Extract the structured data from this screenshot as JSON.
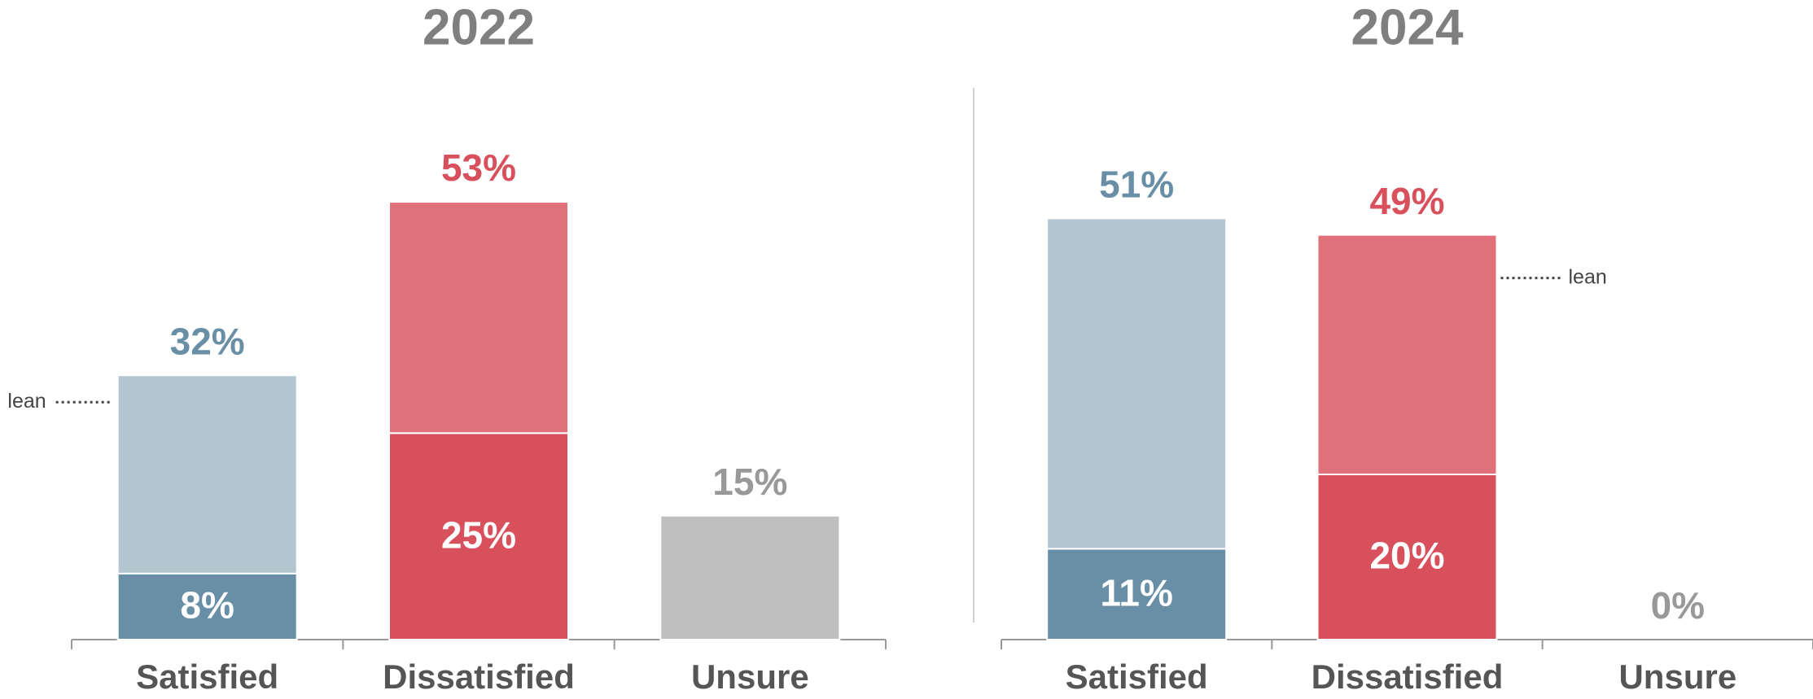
{
  "chart_data": [
    {
      "type": "bar",
      "title": "2022",
      "categories": [
        "Satisfied",
        "Dissatisfied",
        "Unsure"
      ],
      "series": [
        {
          "colors": [
            "#688fa5",
            "#d8505c",
            "#bfbfbf"
          ],
          "values": [
            8,
            25,
            15
          ],
          "value_labels": [
            "8%",
            "25%",
            "15%"
          ]
        },
        {
          "name": "lean",
          "colors": [
            "#b3c6cf",
            "#e0717a",
            null
          ],
          "values": [
            24,
            28,
            null
          ]
        }
      ],
      "totals": [
        32,
        53,
        null
      ],
      "total_labels": [
        "32%",
        "53%",
        null
      ],
      "label_colors": [
        "#688fa5",
        "#d8505c",
        "#999999"
      ]
    },
    {
      "type": "bar",
      "title": "2024",
      "categories": [
        "Satisfied",
        "Dissatisfied",
        "Unsure"
      ],
      "series": [
        {
          "colors": [
            "#688fa5",
            "#d8505c",
            "#bfbfbf"
          ],
          "values": [
            11,
            20,
            0
          ],
          "value_labels": [
            "11%",
            "20%",
            "0%"
          ]
        },
        {
          "name": "lean",
          "colors": [
            "#b3c6cf",
            "#e0717a",
            null
          ],
          "values": [
            40,
            29,
            null
          ]
        }
      ],
      "totals": [
        51,
        49,
        null
      ],
      "total_labels": [
        "51%",
        "49%",
        null
      ],
      "label_colors": [
        "#688fa5",
        "#d8505c",
        "#999999"
      ]
    }
  ]
}
